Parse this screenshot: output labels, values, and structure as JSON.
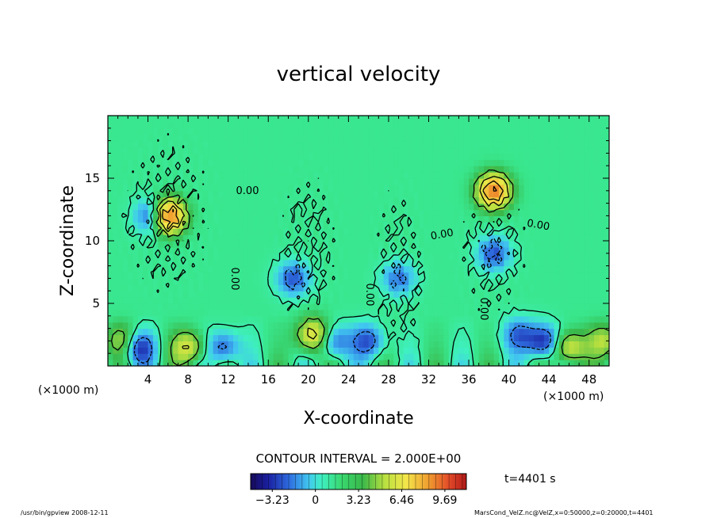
{
  "chart_data": {
    "type": "heatmap",
    "title": "vertical velocity",
    "xlabel": "X-coordinate",
    "ylabel": "Z-coordinate",
    "x_unit_left": "(×1000 m)",
    "x_unit_right": "(×1000 m)",
    "xlim": [
      0,
      50
    ],
    "ylim": [
      0,
      20
    ],
    "xticks": [
      4,
      8,
      12,
      16,
      20,
      24,
      28,
      32,
      36,
      40,
      44,
      48
    ],
    "yticks": [
      5,
      10,
      15
    ],
    "contour_interval_label": "CONTOUR INTERVAL = 2.000E+00",
    "contour_labels": [
      "0.00",
      "0.00",
      "0.00",
      "0.00",
      "0.00",
      "0.00"
    ],
    "colorbar": {
      "min": -4.85,
      "max": 11.3,
      "ticks": [
        -3.23,
        0,
        3.23,
        6.46,
        9.69
      ],
      "tick_labels": [
        "−3.23",
        "0",
        "3.23",
        "6.46",
        "9.69"
      ]
    },
    "time_label": "t=4401 s",
    "grid": false,
    "features": [
      {
        "x": 6,
        "z": 12,
        "v": 9
      },
      {
        "x": 38.5,
        "z": 14,
        "v": 8
      },
      {
        "x": 20.5,
        "z": 2.5,
        "v": 5
      },
      {
        "x": 8,
        "z": 1.5,
        "v": 4
      },
      {
        "x": 46,
        "z": 1.5,
        "v": 4
      },
      {
        "x": 1.5,
        "z": 2,
        "v": 3
      },
      {
        "x": 49.5,
        "z": 2,
        "v": 3
      },
      {
        "x": 4.5,
        "z": 12,
        "v": -4
      },
      {
        "x": 3,
        "z": 1.5,
        "v": -4
      },
      {
        "x": 43.5,
        "z": 2,
        "v": -4
      },
      {
        "x": 18.5,
        "z": 7,
        "v": -3
      },
      {
        "x": 22.5,
        "z": 2,
        "v": -3
      },
      {
        "x": 26,
        "z": 2,
        "v": -3
      },
      {
        "x": 41,
        "z": 2.5,
        "v": -2.5
      },
      {
        "x": 38.5,
        "z": 9,
        "v": -3
      },
      {
        "x": 29,
        "z": 7,
        "v": -2.5
      },
      {
        "x": 11.5,
        "z": 1.5,
        "v": -3
      }
    ]
  },
  "footer": {
    "program": "/usr/bin/gpview  2008-12-11",
    "source": "MarsCond_VelZ.nc@VelZ,x=0:50000,z=0:20000,t=4401"
  }
}
